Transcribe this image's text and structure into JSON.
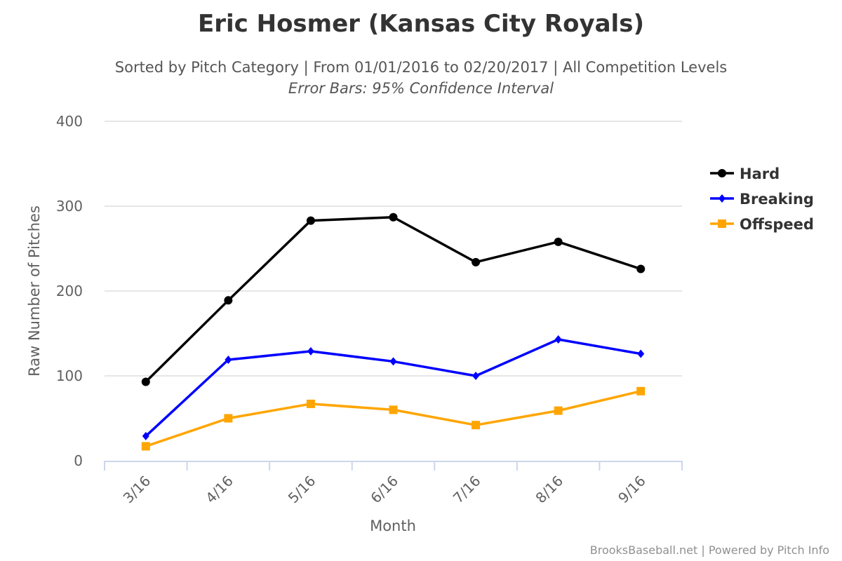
{
  "chart_data": {
    "type": "line",
    "title": "Eric Hosmer (Kansas City Royals)",
    "subtitle": "Sorted by Pitch Category | From 01/01/2016 to 02/20/2017 | All Competition Levels",
    "subtitle2": "Error Bars: 95% Confidence Interval",
    "xlabel": "Month",
    "ylabel": "Raw Number of Pitches",
    "categories": [
      "3/16",
      "4/16",
      "5/16",
      "6/16",
      "7/16",
      "8/16",
      "9/16"
    ],
    "yticks": [
      "0",
      "100",
      "200",
      "300",
      "400"
    ],
    "ylim": [
      0,
      400
    ],
    "grid": true,
    "legend_position": "right",
    "series": [
      {
        "name": "Hard",
        "color": "#000000",
        "marker": "circle",
        "values": [
          93,
          189,
          283,
          287,
          234,
          258,
          226
        ]
      },
      {
        "name": "Breaking",
        "color": "#0000ff",
        "marker": "diamond",
        "values": [
          29,
          119,
          129,
          117,
          100,
          143,
          126
        ]
      },
      {
        "name": "Offspeed",
        "color": "#ffa500",
        "marker": "square",
        "values": [
          17,
          50,
          67,
          60,
          42,
          59,
          82
        ]
      }
    ],
    "credits": "BrooksBaseball.net | Powered by Pitch Info"
  }
}
